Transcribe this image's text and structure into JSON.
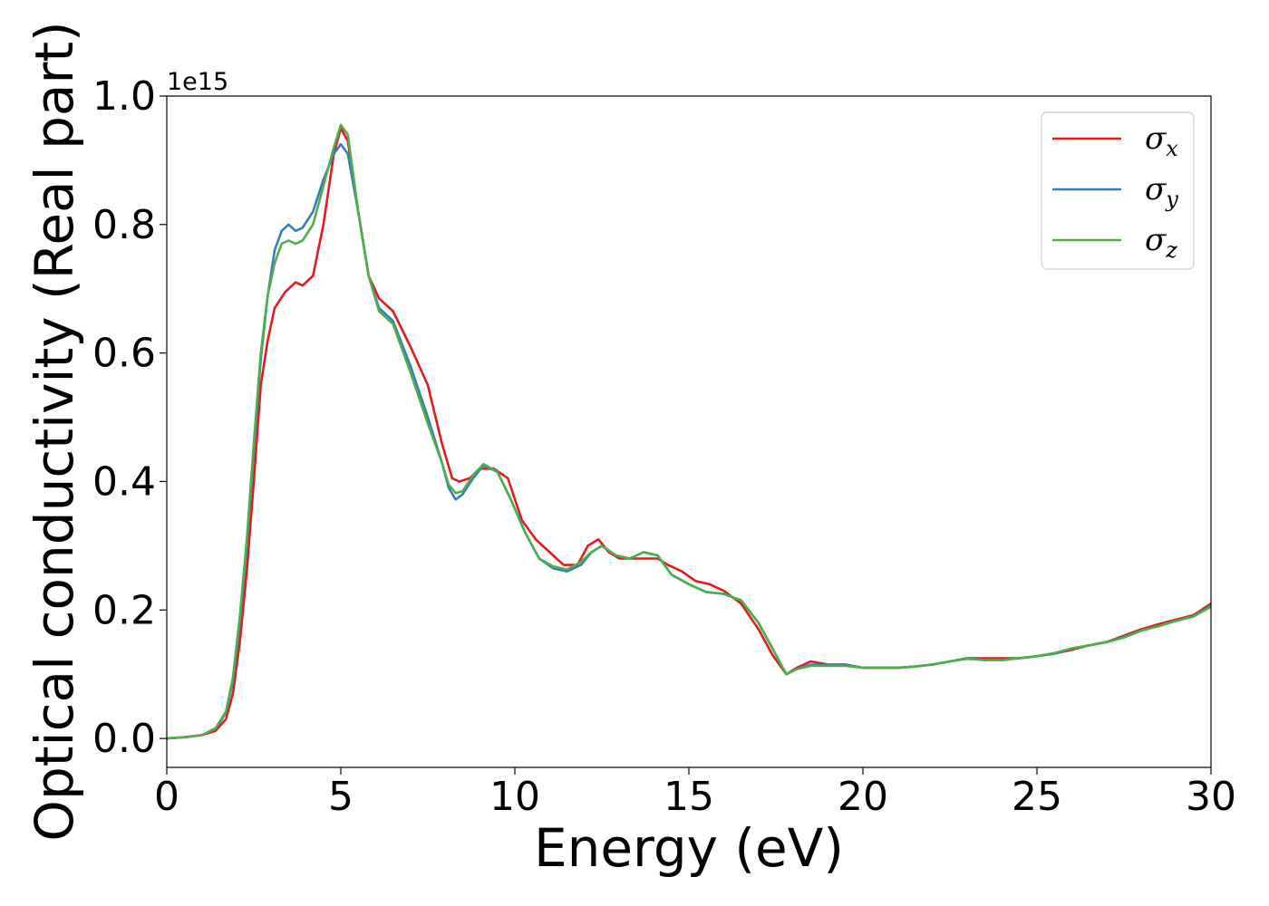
{
  "chart_data": {
    "type": "line",
    "title": "",
    "xlabel": "Energy (eV)",
    "ylabel": "Optical conductivity (Real part)",
    "y_offset_text": "1e15",
    "y_scale_factor": 1000000000000000.0,
    "xlim": [
      0,
      30
    ],
    "ylim": [
      -0.045,
      1.0
    ],
    "xticks": [
      0,
      5,
      10,
      15,
      20,
      25,
      30
    ],
    "xtick_labels": [
      "0",
      "5",
      "10",
      "15",
      "20",
      "25",
      "30"
    ],
    "yticks": [
      0.0,
      0.2,
      0.4,
      0.6,
      0.8,
      1.0
    ],
    "ytick_labels": [
      "0.0",
      "0.2",
      "0.4",
      "0.6",
      "0.8",
      "1.0"
    ],
    "grid": false,
    "legend_position": "top-right",
    "series": [
      {
        "name": "σx",
        "label_base": "σ",
        "label_sub": "x",
        "color": "#e41a1c",
        "x": [
          0,
          0.5,
          1.0,
          1.4,
          1.7,
          1.9,
          2.1,
          2.3,
          2.5,
          2.7,
          2.9,
          3.1,
          3.4,
          3.7,
          3.9,
          4.2,
          4.5,
          4.8,
          5.0,
          5.2,
          5.5,
          5.8,
          6.1,
          6.5,
          7.0,
          7.5,
          7.9,
          8.2,
          8.4,
          8.7,
          9.0,
          9.4,
          9.8,
          10.2,
          10.6,
          11.0,
          11.4,
          11.8,
          12.1,
          12.4,
          12.7,
          13.0,
          13.4,
          13.8,
          14.1,
          14.4,
          14.8,
          15.2,
          15.6,
          16.0,
          16.5,
          17.0,
          17.4,
          17.8,
          18.1,
          18.5,
          19.0,
          19.5,
          20.0,
          20.5,
          21.0,
          21.5,
          22.0,
          22.5,
          23.0,
          23.5,
          24.0,
          24.5,
          25.0,
          25.5,
          26.0,
          26.5,
          27.0,
          27.5,
          28.0,
          28.5,
          29.0,
          29.5,
          30.0
        ],
        "y": [
          0.0,
          0.002,
          0.005,
          0.012,
          0.03,
          0.07,
          0.15,
          0.26,
          0.4,
          0.55,
          0.62,
          0.67,
          0.695,
          0.71,
          0.705,
          0.72,
          0.8,
          0.91,
          0.95,
          0.93,
          0.82,
          0.72,
          0.685,
          0.665,
          0.61,
          0.55,
          0.46,
          0.405,
          0.4,
          0.405,
          0.42,
          0.42,
          0.405,
          0.34,
          0.31,
          0.29,
          0.27,
          0.27,
          0.3,
          0.31,
          0.29,
          0.28,
          0.28,
          0.28,
          0.28,
          0.27,
          0.26,
          0.245,
          0.24,
          0.23,
          0.21,
          0.17,
          0.13,
          0.1,
          0.11,
          0.12,
          0.115,
          0.115,
          0.11,
          0.11,
          0.11,
          0.112,
          0.115,
          0.12,
          0.125,
          0.125,
          0.125,
          0.125,
          0.128,
          0.132,
          0.138,
          0.145,
          0.15,
          0.16,
          0.17,
          0.178,
          0.185,
          0.192,
          0.21
        ]
      },
      {
        "name": "σy",
        "label_base": "σ",
        "label_sub": "y",
        "color": "#377eb8",
        "x": [
          0,
          0.5,
          1.0,
          1.4,
          1.7,
          1.9,
          2.1,
          2.3,
          2.5,
          2.7,
          2.9,
          3.1,
          3.3,
          3.5,
          3.7,
          3.9,
          4.2,
          4.5,
          4.8,
          5.0,
          5.2,
          5.5,
          5.8,
          6.1,
          6.5,
          7.0,
          7.5,
          7.9,
          8.1,
          8.3,
          8.5,
          8.8,
          9.1,
          9.5,
          9.9,
          10.3,
          10.7,
          11.1,
          11.5,
          11.9,
          12.2,
          12.5,
          12.9,
          13.3,
          13.7,
          14.1,
          14.5,
          15.0,
          15.5,
          16.0,
          16.5,
          17.0,
          17.4,
          17.8,
          18.1,
          18.5,
          19.0,
          19.5,
          20.0,
          20.5,
          21.0,
          21.5,
          22.0,
          22.5,
          23.0,
          23.5,
          24.0,
          24.5,
          25.0,
          25.5,
          26.0,
          26.5,
          27.0,
          27.5,
          28.0,
          28.5,
          29.0,
          29.5,
          30.0
        ],
        "y": [
          0.0,
          0.002,
          0.005,
          0.015,
          0.04,
          0.09,
          0.18,
          0.3,
          0.45,
          0.59,
          0.69,
          0.76,
          0.79,
          0.8,
          0.79,
          0.795,
          0.82,
          0.87,
          0.91,
          0.925,
          0.91,
          0.82,
          0.72,
          0.67,
          0.65,
          0.58,
          0.5,
          0.43,
          0.39,
          0.372,
          0.38,
          0.405,
          0.425,
          0.415,
          0.37,
          0.32,
          0.28,
          0.265,
          0.26,
          0.27,
          0.29,
          0.3,
          0.285,
          0.28,
          0.29,
          0.285,
          0.255,
          0.24,
          0.228,
          0.225,
          0.215,
          0.18,
          0.14,
          0.1,
          0.108,
          0.115,
          0.115,
          0.115,
          0.11,
          0.11,
          0.11,
          0.112,
          0.115,
          0.12,
          0.125,
          0.122,
          0.122,
          0.125,
          0.128,
          0.132,
          0.14,
          0.145,
          0.15,
          0.158,
          0.168,
          0.175,
          0.183,
          0.19,
          0.207
        ]
      },
      {
        "name": "σz",
        "label_base": "σ",
        "label_sub": "z",
        "color": "#4daf4a",
        "x": [
          0,
          0.5,
          1.0,
          1.4,
          1.7,
          1.9,
          2.1,
          2.3,
          2.5,
          2.7,
          2.9,
          3.1,
          3.3,
          3.5,
          3.7,
          3.9,
          4.2,
          4.5,
          4.8,
          5.0,
          5.2,
          5.5,
          5.8,
          6.1,
          6.5,
          7.0,
          7.5,
          7.9,
          8.1,
          8.3,
          8.5,
          8.8,
          9.1,
          9.5,
          9.9,
          10.3,
          10.7,
          11.1,
          11.5,
          11.9,
          12.2,
          12.5,
          12.9,
          13.3,
          13.7,
          14.1,
          14.5,
          15.0,
          15.5,
          16.0,
          16.5,
          17.0,
          17.4,
          17.8,
          18.1,
          18.5,
          19.0,
          19.5,
          20.0,
          20.5,
          21.0,
          21.5,
          22.0,
          22.5,
          23.0,
          23.5,
          24.0,
          24.5,
          25.0,
          25.5,
          26.0,
          26.5,
          27.0,
          27.5,
          28.0,
          28.5,
          29.0,
          29.5,
          30.0
        ],
        "y": [
          0.0,
          0.002,
          0.005,
          0.016,
          0.042,
          0.095,
          0.19,
          0.31,
          0.46,
          0.6,
          0.69,
          0.74,
          0.77,
          0.775,
          0.77,
          0.775,
          0.8,
          0.86,
          0.92,
          0.955,
          0.94,
          0.82,
          0.72,
          0.665,
          0.645,
          0.57,
          0.49,
          0.43,
          0.395,
          0.382,
          0.385,
          0.41,
          0.427,
          0.415,
          0.37,
          0.32,
          0.28,
          0.268,
          0.263,
          0.275,
          0.29,
          0.3,
          0.285,
          0.28,
          0.29,
          0.285,
          0.255,
          0.24,
          0.228,
          0.225,
          0.215,
          0.18,
          0.14,
          0.1,
          0.108,
          0.113,
          0.113,
          0.113,
          0.11,
          0.11,
          0.11,
          0.112,
          0.115,
          0.12,
          0.124,
          0.122,
          0.122,
          0.125,
          0.128,
          0.133,
          0.14,
          0.145,
          0.15,
          0.157,
          0.168,
          0.175,
          0.183,
          0.19,
          0.205
        ]
      }
    ]
  }
}
